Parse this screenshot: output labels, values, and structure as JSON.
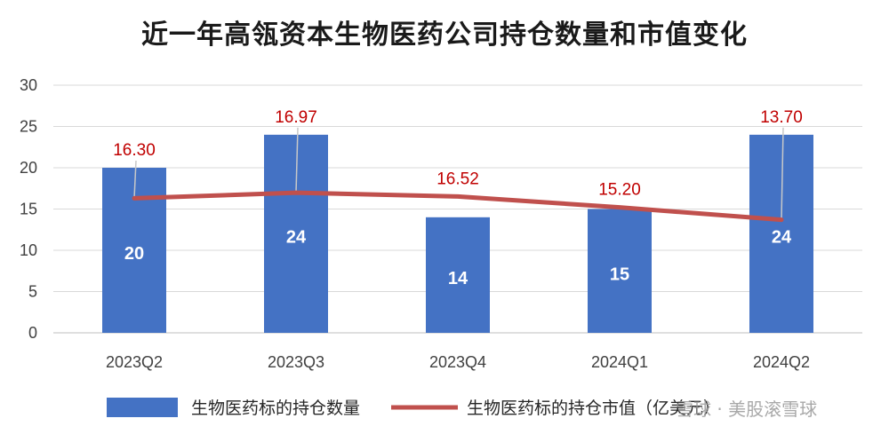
{
  "chart_data": {
    "type": "bar",
    "title": "近一年高瓴资本生物医药公司持仓数量和市值变化",
    "categories": [
      "2023Q2",
      "2023Q3",
      "2023Q4",
      "2024Q1",
      "2024Q2"
    ],
    "ylim": [
      0,
      30
    ],
    "yticks": [
      0,
      5,
      10,
      15,
      20,
      25,
      30
    ],
    "grid": true,
    "legend_position": "bottom",
    "series": [
      {
        "name": "生物医药标的持仓数量",
        "type": "bar",
        "color": "#4472c4",
        "values": [
          20,
          24,
          14,
          15,
          24
        ],
        "labels": [
          "20",
          "24",
          "14",
          "15",
          "24"
        ]
      },
      {
        "name": "生物医药标的持仓市值（亿美元）",
        "type": "line",
        "color": "#c0504d",
        "values": [
          16.3,
          16.97,
          16.52,
          15.2,
          13.7
        ],
        "labels": [
          "16.30",
          "16.97",
          "16.52",
          "15.20",
          "13.70"
        ]
      }
    ]
  },
  "legend": {
    "bar_label": "生物医药标的持仓数量",
    "line_label": "生物医药标的持仓市值（亿美元）"
  },
  "watermark": "雪球 · 美股滚雪球"
}
